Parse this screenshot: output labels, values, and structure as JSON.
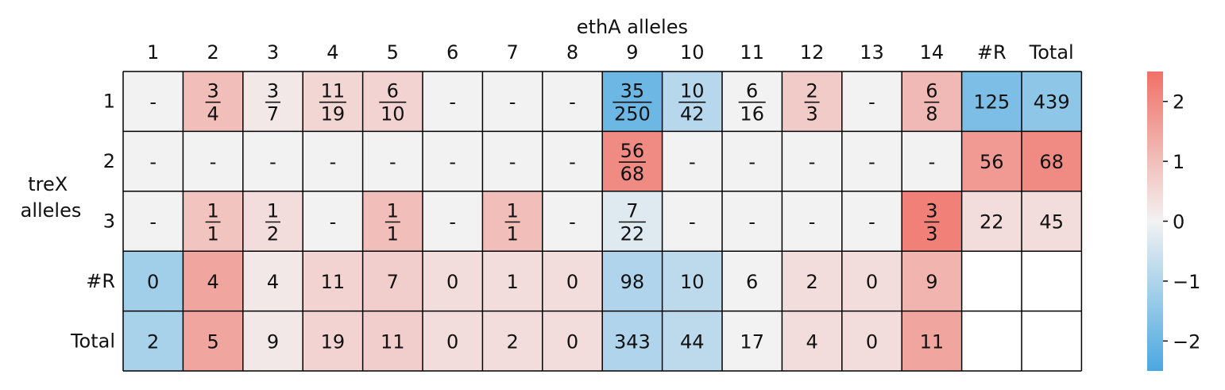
{
  "chart_data": {
    "type": "heatmap",
    "xlabel": "ethA alleles",
    "ylabel": [
      "treX",
      "alleles"
    ],
    "col_labels": [
      "1",
      "2",
      "3",
      "4",
      "5",
      "6",
      "7",
      "8",
      "9",
      "10",
      "11",
      "12",
      "13",
      "14",
      "#R",
      "Total"
    ],
    "row_labels": [
      "1",
      "2",
      "3",
      "#R",
      "Total"
    ],
    "cells": [
      [
        {
          "text": "-",
          "v": 0
        },
        {
          "num": "3",
          "den": "4",
          "v": 1.0
        },
        {
          "num": "3",
          "den": "7",
          "v": 0.2
        },
        {
          "num": "11",
          "den": "19",
          "v": 0.55
        },
        {
          "num": "6",
          "den": "10",
          "v": 0.6
        },
        {
          "text": "-",
          "v": 0
        },
        {
          "text": "-",
          "v": 0
        },
        {
          "text": "-",
          "v": 0
        },
        {
          "num": "35",
          "den": "250",
          "v": -2.0
        },
        {
          "num": "10",
          "den": "42",
          "v": -0.9
        },
        {
          "num": "6",
          "den": "16",
          "v": 0
        },
        {
          "num": "2",
          "den": "3",
          "v": 0.75
        },
        {
          "text": "-",
          "v": 0
        },
        {
          "num": "6",
          "den": "8",
          "v": 1.1
        },
        {
          "text": "125",
          "v": -1.75
        },
        {
          "text": "439",
          "v": -1.5
        }
      ],
      [
        {
          "text": "-",
          "v": 0
        },
        {
          "text": "-",
          "v": 0
        },
        {
          "text": "-",
          "v": 0
        },
        {
          "text": "-",
          "v": 0
        },
        {
          "text": "-",
          "v": 0
        },
        {
          "text": "-",
          "v": 0
        },
        {
          "text": "-",
          "v": 0
        },
        {
          "text": "-",
          "v": 0
        },
        {
          "num": "56",
          "den": "68",
          "v": 2.0
        },
        {
          "text": "-",
          "v": 0
        },
        {
          "text": "-",
          "v": 0
        },
        {
          "text": "-",
          "v": 0
        },
        {
          "text": "-",
          "v": 0
        },
        {
          "text": "-",
          "v": 0
        },
        {
          "text": "56",
          "v": 1.7
        },
        {
          "text": "68",
          "v": 2.0
        }
      ],
      [
        {
          "text": "-",
          "v": 0
        },
        {
          "num": "1",
          "den": "1",
          "v": 0.9
        },
        {
          "num": "1",
          "den": "2",
          "v": 0.4
        },
        {
          "text": "-",
          "v": 0
        },
        {
          "num": "1",
          "den": "1",
          "v": 1.0
        },
        {
          "text": "-",
          "v": 0
        },
        {
          "num": "1",
          "den": "1",
          "v": 1.0
        },
        {
          "text": "-",
          "v": 0
        },
        {
          "num": "7",
          "den": "22",
          "v": -0.3
        },
        {
          "text": "-",
          "v": 0
        },
        {
          "text": "-",
          "v": 0
        },
        {
          "text": "-",
          "v": 0
        },
        {
          "text": "-",
          "v": 0
        },
        {
          "num": "3",
          "den": "3",
          "v": 2.2
        },
        {
          "text": "22",
          "v": 0.4
        },
        {
          "text": "45",
          "v": 0.4
        }
      ],
      [
        {
          "text": "0",
          "v": -1.2
        },
        {
          "text": "4",
          "v": 1.5
        },
        {
          "text": "4",
          "v": 0.2
        },
        {
          "text": "11",
          "v": 0.6
        },
        {
          "text": "7",
          "v": 0.7
        },
        {
          "text": "0",
          "v": 0.4
        },
        {
          "text": "1",
          "v": 0.4
        },
        {
          "text": "0",
          "v": 0.4
        },
        {
          "text": "98",
          "v": -1.0
        },
        {
          "text": "10",
          "v": -0.8
        },
        {
          "text": "6",
          "v": 0
        },
        {
          "text": "2",
          "v": 0.4
        },
        {
          "text": "0",
          "v": 0.4
        },
        {
          "text": "9",
          "v": 1.2
        },
        {
          "text": "",
          "v": null
        },
        {
          "text": "",
          "v": null
        }
      ],
      [
        {
          "text": "2",
          "v": -1.1
        },
        {
          "text": "5",
          "v": 1.5
        },
        {
          "text": "9",
          "v": 0.2
        },
        {
          "text": "19",
          "v": 0.6
        },
        {
          "text": "11",
          "v": 0.7
        },
        {
          "text": "0",
          "v": 0.4
        },
        {
          "text": "2",
          "v": 0.4
        },
        {
          "text": "0",
          "v": 0.4
        },
        {
          "text": "343",
          "v": -1.0
        },
        {
          "text": "44",
          "v": -0.8
        },
        {
          "text": "17",
          "v": 0
        },
        {
          "text": "4",
          "v": 0.4
        },
        {
          "text": "0",
          "v": 0.4
        },
        {
          "text": "11",
          "v": 1.5
        },
        {
          "text": "",
          "v": null
        },
        {
          "text": "",
          "v": null
        }
      ]
    ],
    "colorbar": {
      "range": [
        -2.5,
        2.5
      ],
      "ticks": [
        2,
        1,
        0,
        -1,
        -2
      ],
      "tick_labels": [
        "2",
        "1",
        "0",
        "−1",
        "−2"
      ],
      "colors": {
        "negative": "#4aa8e0",
        "neutral": "#f2f2f2",
        "positive": "#f07167"
      }
    },
    "grid": true
  }
}
